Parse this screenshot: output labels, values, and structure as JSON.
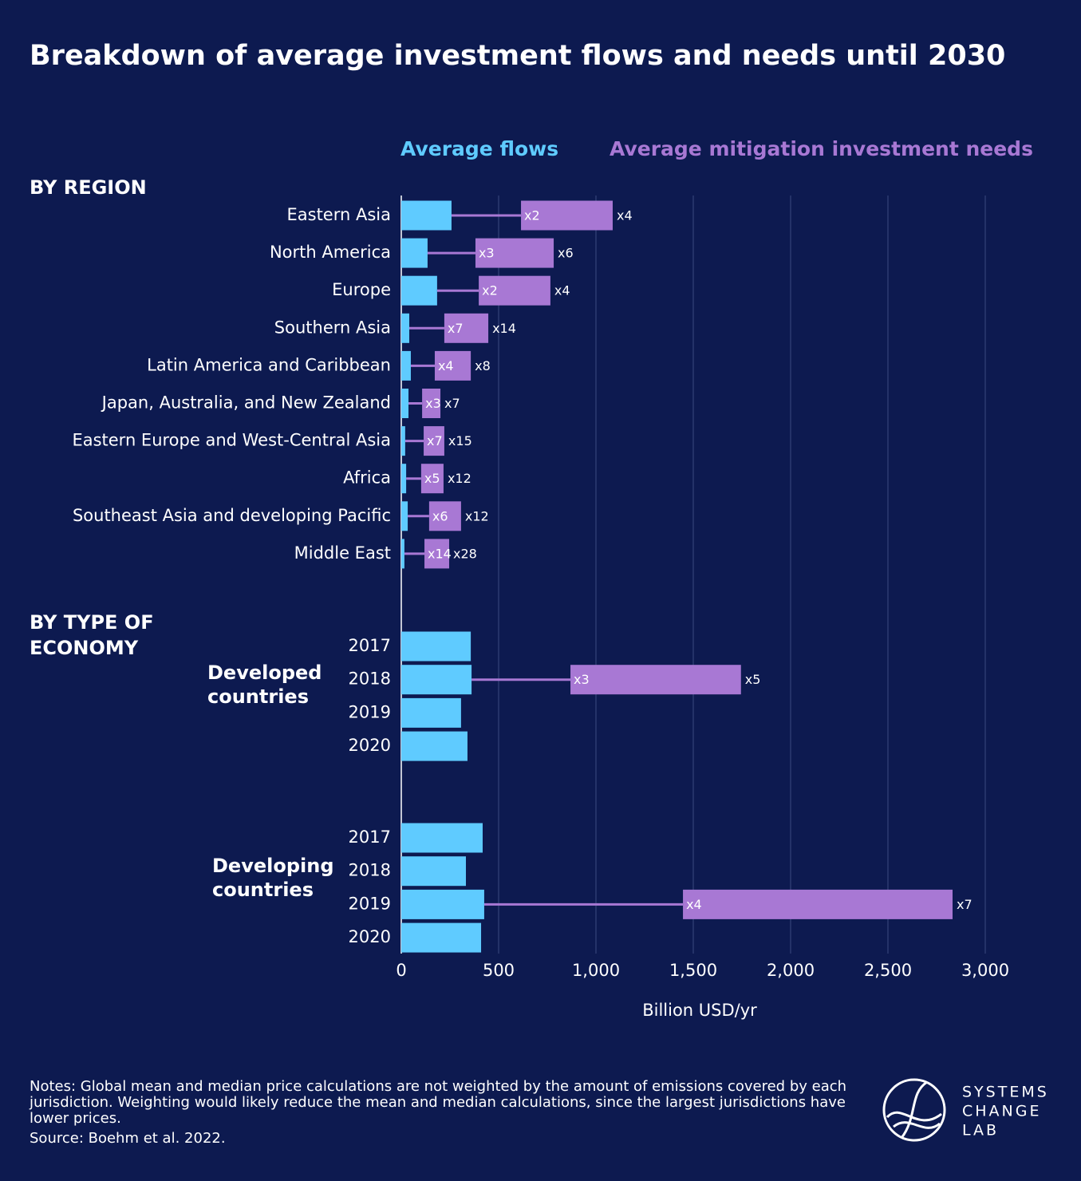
{
  "chart_data": {
    "type": "range_bar",
    "title": "Breakdown of average investment flows and needs until 2030",
    "legend": {
      "flows": "Average flows",
      "needs": "Average mitigation investment needs"
    },
    "colors": {
      "flows": "#5fcbff",
      "needs": "#a878d4"
    },
    "x_label": "Billion USD/yr",
    "xlim": [
      0,
      3000
    ],
    "xticks": [
      0,
      500,
      {
        "value": 1000,
        "label": "1,000"
      },
      {
        "value": 1500,
        "label": "1,500"
      },
      {
        "value": 2000,
        "label": "2,000"
      },
      {
        "value": 2500,
        "label": "2,500"
      },
      {
        "value": 3000,
        "label": "3,000"
      }
    ],
    "grid": true,
    "region": {
      "heading": "BY REGION",
      "categories": [
        "Eastern Asia",
        "North America",
        "Europe",
        "Southern Asia",
        "Latin America and Caribbean",
        "Japan, Australia, and New Zealand",
        "Eastern Europe and West-Central Asia",
        "Africa",
        "Southeast Asia and developing Pacific",
        "Middle East"
      ],
      "flows": [
        258,
        135,
        184,
        41,
        49,
        37,
        20,
        25,
        33,
        16
      ],
      "needs_low": [
        615,
        381,
        398,
        221,
        172,
        107,
        115,
        102,
        143,
        119
      ],
      "needs_high": [
        1086,
        783,
        766,
        447,
        357,
        201,
        221,
        217,
        307,
        246
      ],
      "low_labels": [
        "x2",
        "x3",
        "x2",
        "x7",
        "x4",
        "x3",
        "x7",
        "x5",
        "x6",
        "x14"
      ],
      "high_labels": [
        "x4",
        "x6",
        "x4",
        "x14",
        "x8",
        "x7",
        "x15",
        "x12",
        "x12",
        "x28"
      ]
    },
    "economy": {
      "heading": "BY TYPE OF ECONOMY",
      "groups": [
        {
          "name": "Developed countries",
          "categories": [
            "2017",
            "2018",
            "2019",
            "2020"
          ],
          "flows": [
            357,
            361,
            307,
            340
          ],
          "needs_low": [
            null,
            869,
            null,
            null
          ],
          "needs_high": [
            null,
            1745,
            null,
            null
          ],
          "low_labels": [
            null,
            "x3",
            null,
            null
          ],
          "high_labels": [
            null,
            "x5",
            null,
            null
          ]
        },
        {
          "name": "Developing countries",
          "categories": [
            "2017",
            "2018",
            "2019",
            "2020"
          ],
          "flows": [
            418,
            332,
            426,
            410
          ],
          "needs_low": [
            null,
            null,
            1447,
            null
          ],
          "needs_high": [
            null,
            null,
            2832,
            null
          ],
          "low_labels": [
            null,
            null,
            "x4",
            null
          ],
          "high_labels": [
            null,
            null,
            "x7",
            null
          ]
        }
      ]
    },
    "notes": "Notes: Global mean and median price calculations are not weighted by the amount of emissions covered by each jurisdiction. Weighting would likely reduce the mean and median calculations, since the largest jurisdictions have lower prices.",
    "source": "Source: Boehm et al. 2022.",
    "logo": [
      "SYSTEMS",
      "CHANGE",
      "LAB"
    ]
  }
}
